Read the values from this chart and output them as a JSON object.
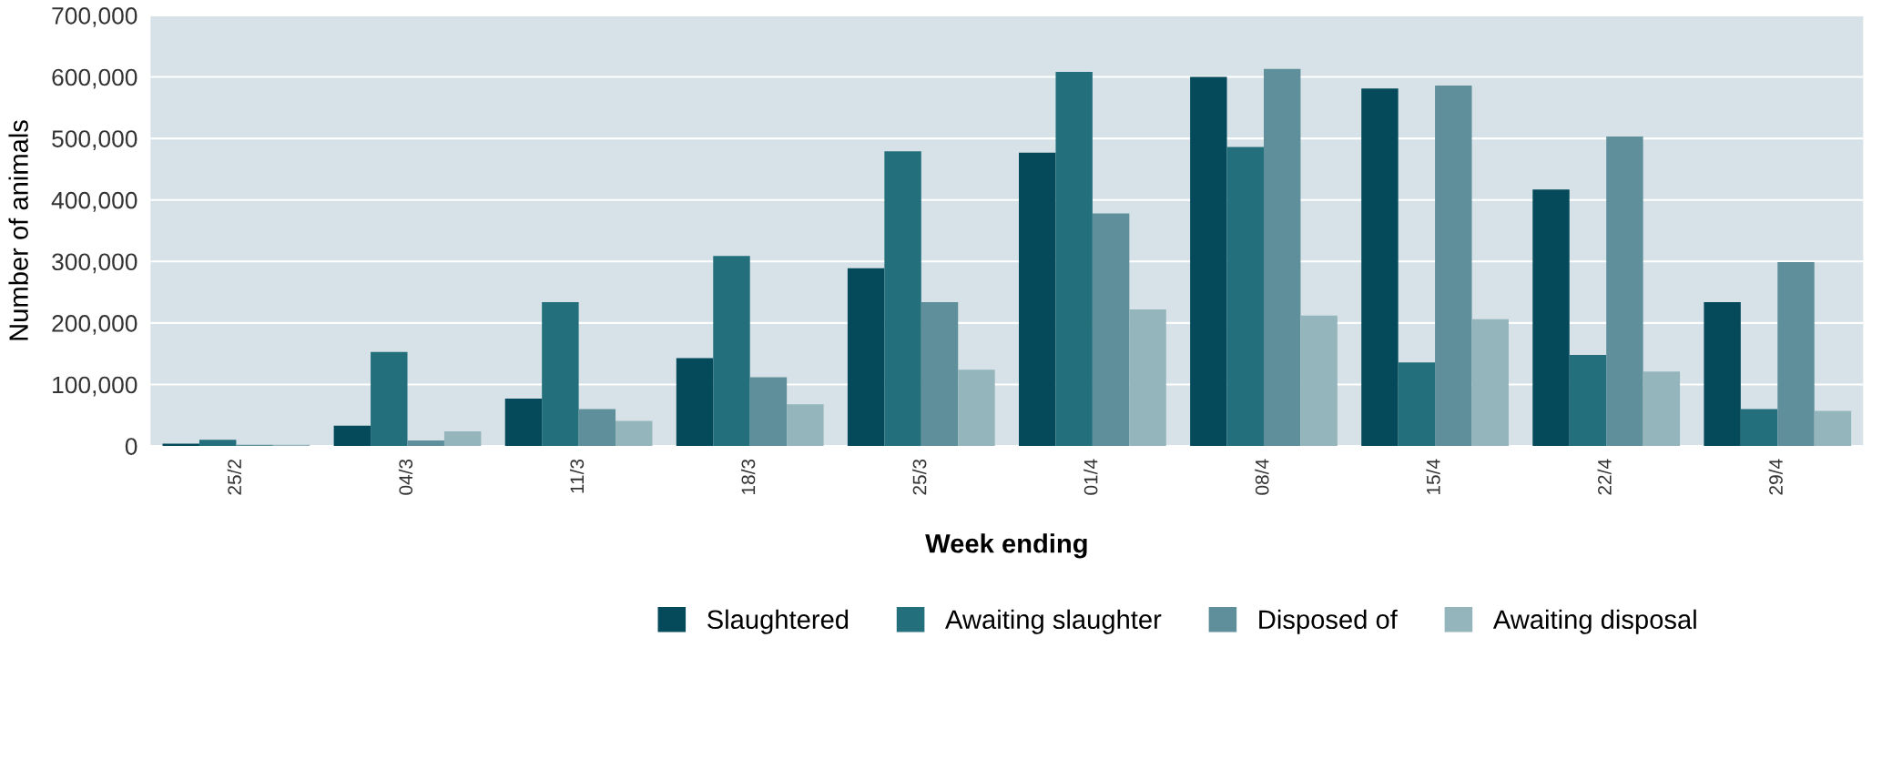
{
  "chart_data": {
    "type": "bar",
    "xlabel": "Week ending",
    "ylabel": "Number of animals",
    "categories": [
      "25/2",
      "04/3",
      "11/3",
      "18/3",
      "25/3",
      "01/4",
      "08/4",
      "15/4",
      "22/4",
      "29/4"
    ],
    "series": [
      {
        "name": "Slaughtered",
        "color": "#054a5a",
        "values": [
          4000,
          33000,
          77000,
          143000,
          289000,
          477000,
          600000,
          581000,
          417000,
          234000
        ]
      },
      {
        "name": "Awaiting slaughter",
        "color": "#246f7c",
        "values": [
          10000,
          153000,
          234000,
          309000,
          479000,
          608000,
          486000,
          136000,
          148000,
          60000
        ]
      },
      {
        "name": "Disposed of",
        "color": "#5e8f9a",
        "values": [
          2000,
          9000,
          60000,
          112000,
          234000,
          378000,
          613000,
          586000,
          503000,
          299000
        ]
      },
      {
        "name": "Awaiting disposal",
        "color": "#95b5bc",
        "values": [
          2000,
          24000,
          41000,
          68000,
          124000,
          222000,
          212000,
          206000,
          121000,
          57000
        ]
      }
    ],
    "ylim": [
      0,
      700000
    ],
    "yticks": [
      {
        "value": 0,
        "label": "0"
      },
      {
        "value": 100000,
        "label": "100,000"
      },
      {
        "value": 200000,
        "label": "200,000"
      },
      {
        "value": 300000,
        "label": "300,000"
      },
      {
        "value": 400000,
        "label": "400,000"
      },
      {
        "value": 500000,
        "label": "500,000"
      },
      {
        "value": 600000,
        "label": "600,000"
      },
      {
        "value": 700000,
        "label": "700,000"
      }
    ],
    "grid": "y",
    "legend": "bottom"
  }
}
